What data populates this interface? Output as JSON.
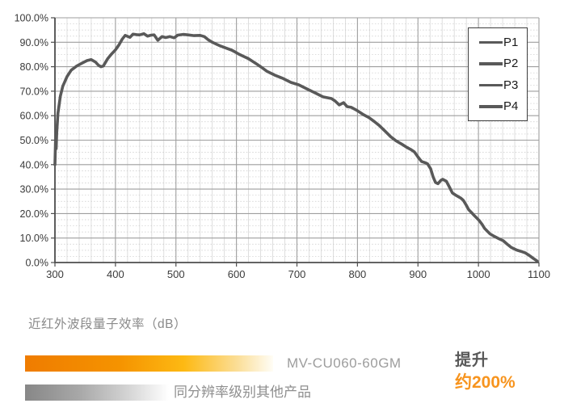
{
  "chart_data": {
    "type": "line",
    "title": "",
    "xlabel": "",
    "ylabel": "",
    "xlim": [
      300,
      1100
    ],
    "ylim": [
      0,
      100
    ],
    "x_ticks": [
      "300",
      "400",
      "500",
      "600",
      "700",
      "800",
      "900",
      "1000",
      "1100"
    ],
    "y_tick_labels": [
      "0.0%",
      "10.0%",
      "20.0%",
      "30.0%",
      "40.0%",
      "50.0%",
      "60.0%",
      "70.0%",
      "80.0%",
      "90.0%",
      "100.0%"
    ],
    "grid": "major+minor (minor x every 20, minor y every 2.5, dotted)",
    "legend": [
      "P1",
      "P2",
      "P3",
      "P4"
    ],
    "legend_position": "upper right",
    "series": [
      {
        "name": "P1 (P1–P4 curves overlap)",
        "points": [
          [
            300,
            40
          ],
          [
            301,
            49.5
          ],
          [
            302,
            46.5
          ],
          [
            303,
            53
          ],
          [
            305,
            61
          ],
          [
            309,
            68
          ],
          [
            313,
            72
          ],
          [
            320,
            76
          ],
          [
            327,
            78.6
          ],
          [
            336,
            80.3
          ],
          [
            345,
            81.5
          ],
          [
            353,
            82.5
          ],
          [
            360,
            82.9
          ],
          [
            367,
            81.9
          ],
          [
            372,
            80.6
          ],
          [
            376,
            80
          ],
          [
            380,
            80.3
          ],
          [
            387,
            83.2
          ],
          [
            393,
            85
          ],
          [
            400,
            86.9
          ],
          [
            406,
            89
          ],
          [
            411,
            91.2
          ],
          [
            416,
            92.8
          ],
          [
            420,
            92.4
          ],
          [
            424,
            92
          ],
          [
            429,
            93.3
          ],
          [
            435,
            93.1
          ],
          [
            440,
            93
          ],
          [
            447,
            93.5
          ],
          [
            453,
            92.5
          ],
          [
            459,
            92.9
          ],
          [
            464,
            93
          ],
          [
            470,
            90.8
          ],
          [
            477,
            92.3
          ],
          [
            483,
            91.9
          ],
          [
            490,
            92.3
          ],
          [
            497,
            91.8
          ],
          [
            503,
            92.9
          ],
          [
            512,
            93.2
          ],
          [
            520,
            93
          ],
          [
            530,
            92.7
          ],
          [
            540,
            92.8
          ],
          [
            547,
            92.3
          ],
          [
            554,
            90.9
          ],
          [
            560,
            90
          ],
          [
            567,
            89.2
          ],
          [
            574,
            88.4
          ],
          [
            583,
            87.6
          ],
          [
            592,
            86.8
          ],
          [
            598,
            86
          ],
          [
            605,
            85
          ],
          [
            612,
            84.2
          ],
          [
            619,
            83.4
          ],
          [
            626,
            82.3
          ],
          [
            633,
            81.2
          ],
          [
            640,
            80
          ],
          [
            650,
            78.2
          ],
          [
            663,
            76.6
          ],
          [
            676,
            75.3
          ],
          [
            690,
            73.6
          ],
          [
            703,
            72.6
          ],
          [
            716,
            71
          ],
          [
            730,
            69.3
          ],
          [
            743,
            67.7
          ],
          [
            757,
            67
          ],
          [
            763,
            66
          ],
          [
            770,
            64.4
          ],
          [
            777,
            65.3
          ],
          [
            783,
            63.7
          ],
          [
            790,
            63.4
          ],
          [
            800,
            62
          ],
          [
            810,
            60.4
          ],
          [
            819,
            59.2
          ],
          [
            828,
            57.6
          ],
          [
            836,
            56
          ],
          [
            846,
            53.6
          ],
          [
            855,
            51.4
          ],
          [
            864,
            49.7
          ],
          [
            873,
            48.4
          ],
          [
            882,
            47
          ],
          [
            888,
            46.2
          ],
          [
            894,
            45.2
          ],
          [
            901,
            42.8
          ],
          [
            906,
            41.3
          ],
          [
            912,
            40.8
          ],
          [
            916,
            40.3
          ],
          [
            921,
            38.3
          ],
          [
            925,
            35
          ],
          [
            929,
            32.7
          ],
          [
            933,
            32.2
          ],
          [
            938,
            33.6
          ],
          [
            941,
            34
          ],
          [
            947,
            33.2
          ],
          [
            953,
            30.4
          ],
          [
            957,
            28.4
          ],
          [
            962,
            27.6
          ],
          [
            966,
            27
          ],
          [
            971,
            26.3
          ],
          [
            975,
            25.4
          ],
          [
            980,
            23.4
          ],
          [
            984,
            21.6
          ],
          [
            989,
            20.3
          ],
          [
            993,
            19.2
          ],
          [
            1001,
            17.2
          ],
          [
            1006,
            15.6
          ],
          [
            1010,
            14
          ],
          [
            1019,
            11.7
          ],
          [
            1027,
            10.6
          ],
          [
            1034,
            9.7
          ],
          [
            1041,
            8.9
          ],
          [
            1048,
            7.4
          ],
          [
            1054,
            6.2
          ],
          [
            1063,
            5.1
          ],
          [
            1070,
            4.6
          ],
          [
            1077,
            4
          ],
          [
            1084,
            2.9
          ],
          [
            1090,
            1.8
          ],
          [
            1097,
            0.6
          ]
        ]
      }
    ]
  },
  "footer": {
    "section_title": "近红外波段量子效率（dB）",
    "bars": [
      {
        "label": "MV-CU060-60GM",
        "style": "orange-gradient"
      },
      {
        "label": "同分辨率级别其他产品",
        "style": "gray-gradient"
      }
    ],
    "improvement": {
      "line1": "提升",
      "line2": "约200%"
    }
  },
  "colors": {
    "curve": "#595959",
    "axis": "#4d4d4d",
    "grid_major": "#9e9e9e",
    "grid_minor": "#d6d6d6",
    "accent_orange": "#f7941e",
    "bar_orange_start": "#ef7c00",
    "bar_gray_start": "#878787",
    "tick_label": "#3a3a3a"
  }
}
